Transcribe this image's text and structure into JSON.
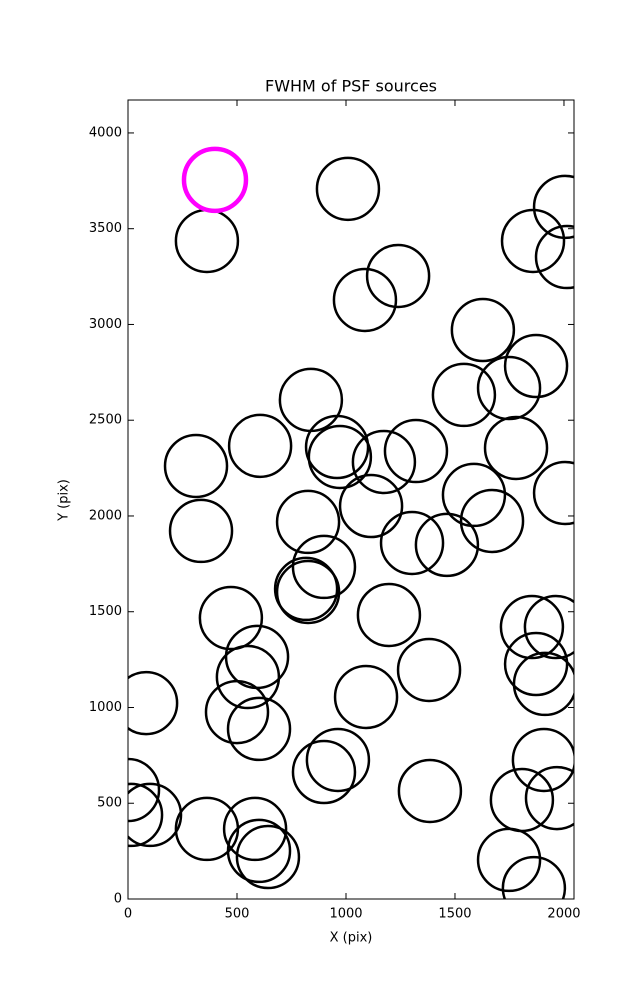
{
  "chart_data": {
    "type": "scatter",
    "title": "FWHM of PSF sources",
    "x_label": "X (pix)",
    "y_label": "Y (pix)",
    "xlim": [
      0,
      2046
    ],
    "ylim": [
      0,
      4172
    ],
    "xticks": [
      0,
      500,
      1000,
      1500,
      2000
    ],
    "yticks": [
      0,
      500,
      1000,
      1500,
      2000,
      2500,
      3000,
      3500,
      4000
    ],
    "series": [
      {
        "color": "#000000",
        "x": [
          362,
          1009,
          2005,
          1858,
          2014,
          1239,
          1087,
          1628,
          1872,
          1748,
          1541,
          839,
          606,
          312,
          959,
          972,
          1174,
          1321,
          1780,
          2005,
          1587,
          1670,
          826,
          1115,
          1303,
          1463,
          335,
          899,
          817,
          826,
          472,
          1197,
          1853,
          1963,
          1872,
          1913,
          592,
          550,
          1381,
          83,
          500,
          601,
          1092,
          963,
          899,
          1908,
          0,
          14,
          101,
          1385,
          1807,
          1968,
          362,
          583,
          601,
          642,
          1748,
          1862
        ],
        "values": [
          3436,
          3708,
          3614,
          3436,
          3352,
          3253,
          3128,
          2971,
          2783,
          2668,
          2632,
          2606,
          2366,
          2261,
          2360,
          2308,
          2282,
          2339,
          2355,
          2120,
          2110,
          1974,
          1969,
          2052,
          1859,
          1849,
          1922,
          1734,
          1619,
          1603,
          1467,
          1483,
          1420,
          1420,
          1227,
          1123,
          1264,
          1159,
          1196,
          1023,
          976,
          888,
          1055,
          726,
          663,
          726,
          569,
          439,
          439,
          564,
          517,
          527,
          366,
          366,
          251,
          219,
          204,
          57
        ]
      },
      {
        "color": "#ff00ff",
        "x": [
          399
        ],
        "values": [
          3755
        ]
      }
    ]
  }
}
